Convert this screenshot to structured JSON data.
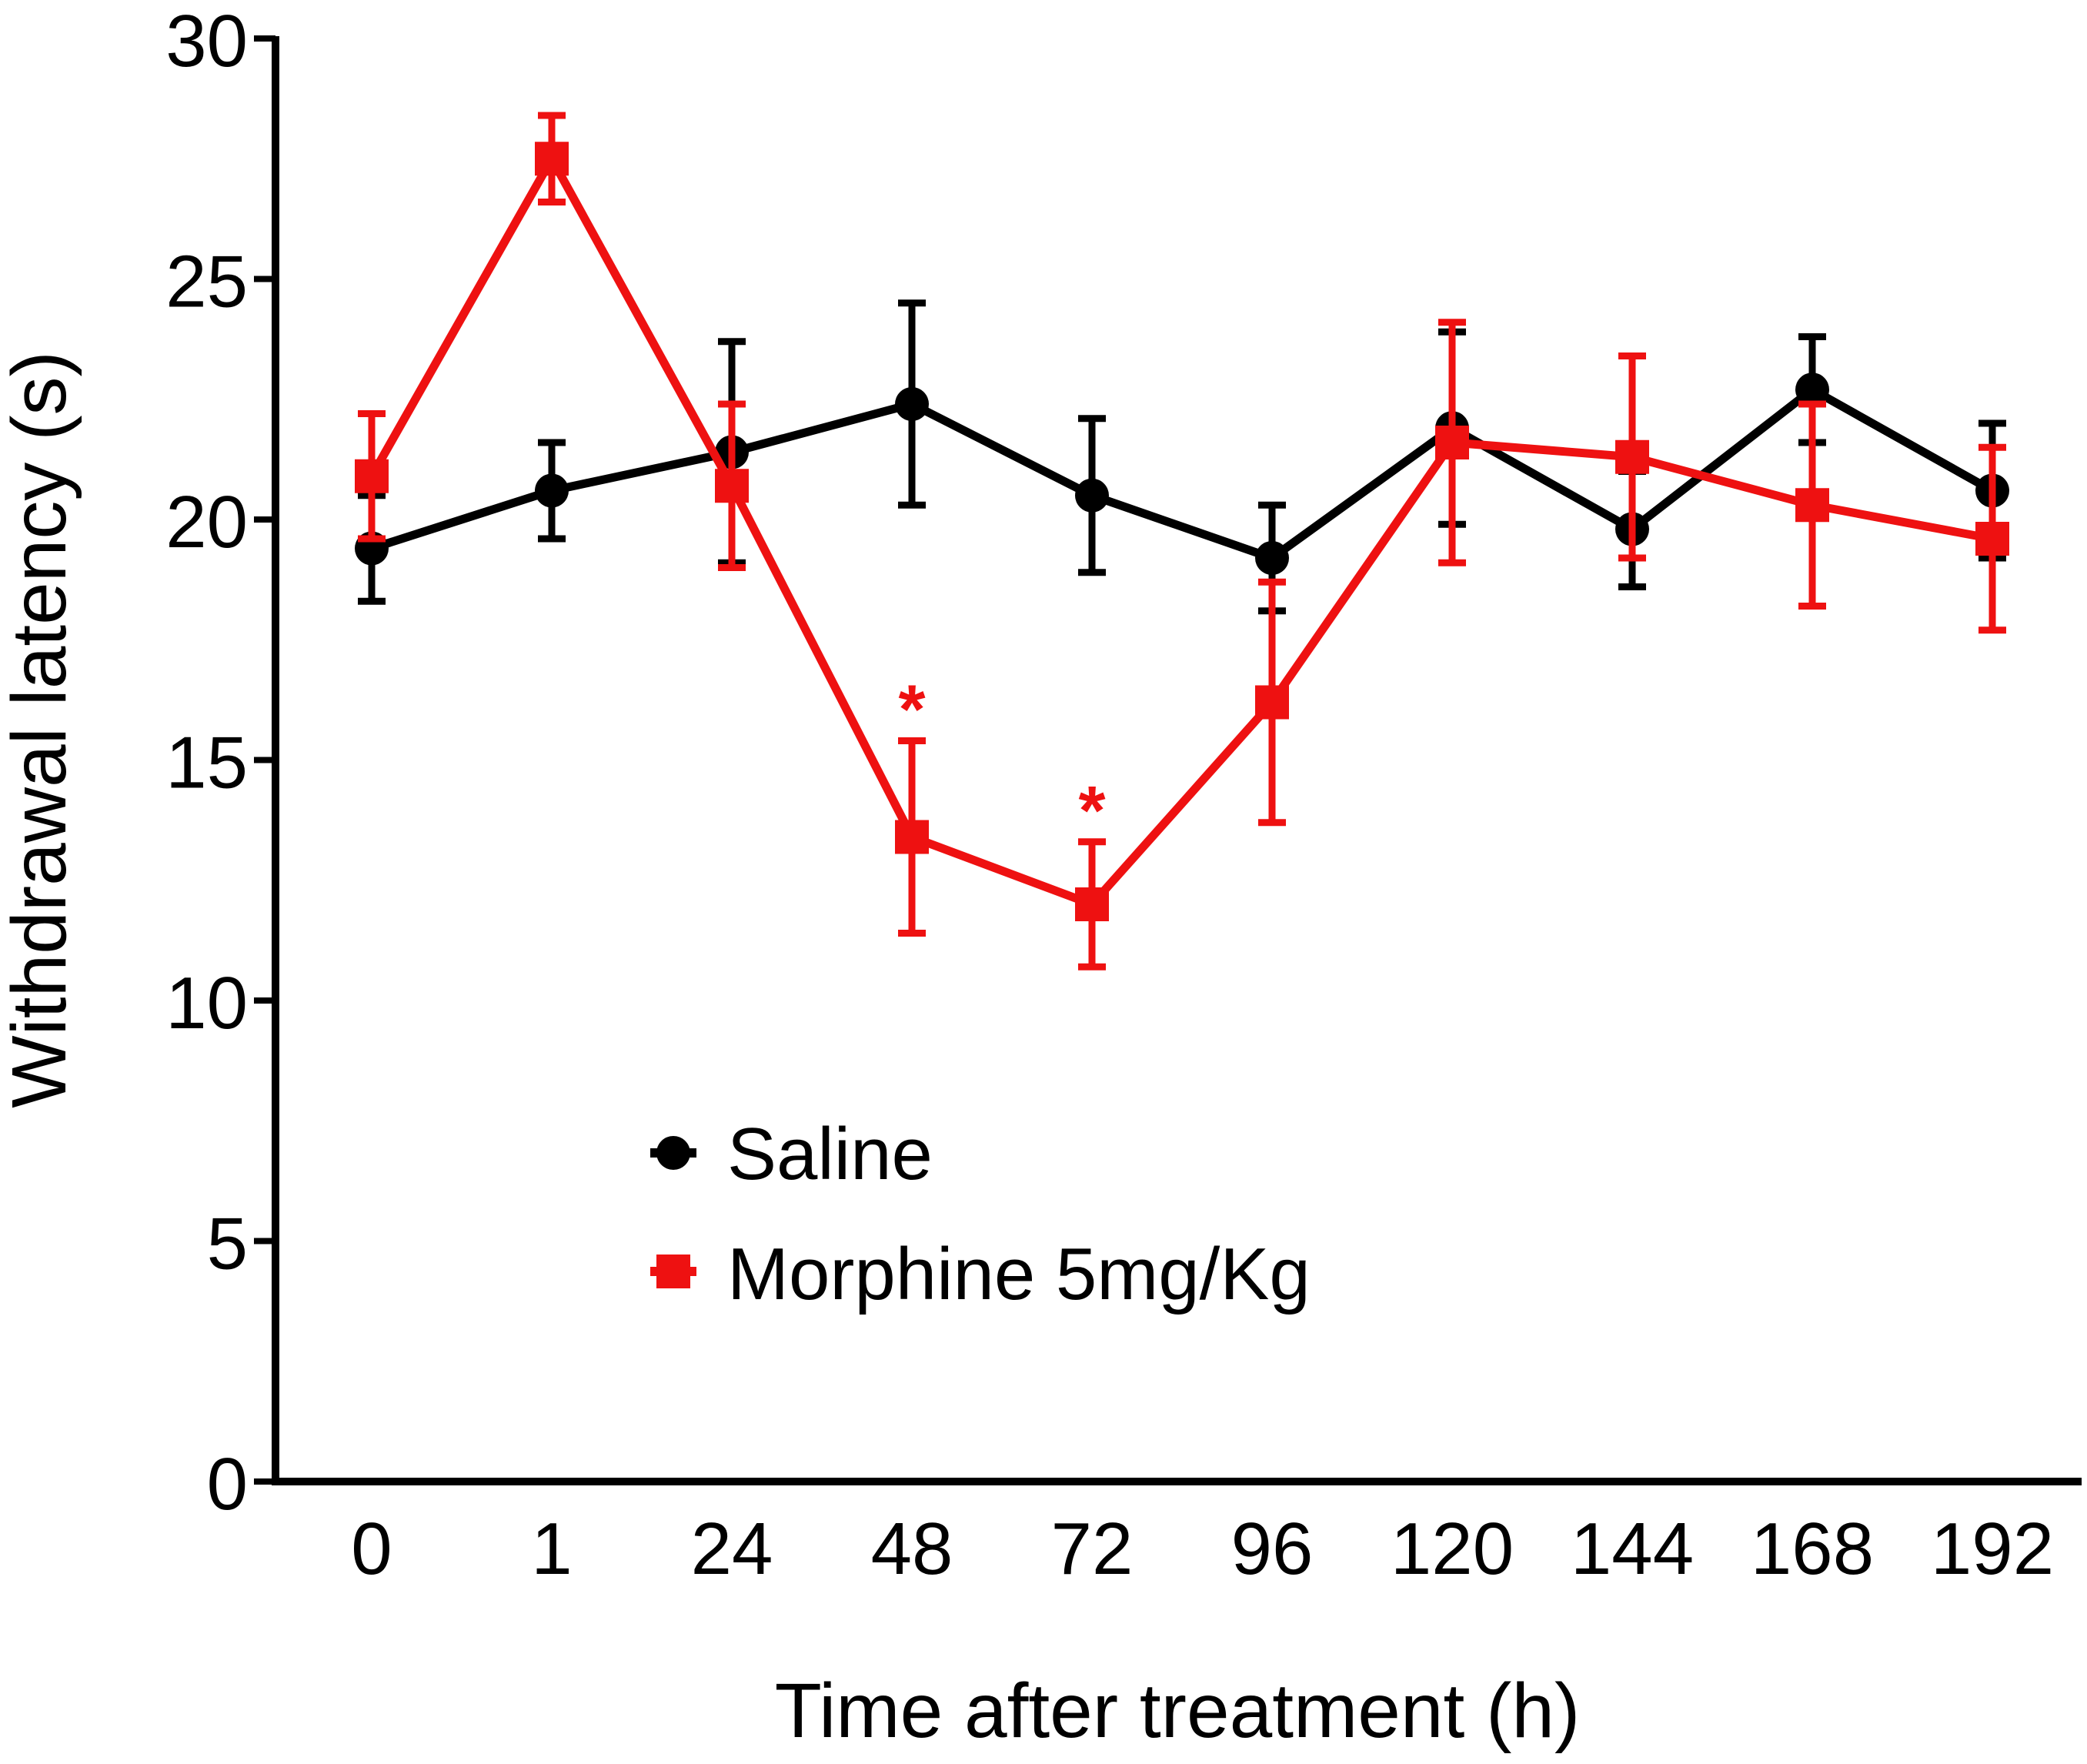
{
  "chart_data": {
    "type": "line",
    "title": "",
    "xlabel": "Time after treatment (h)",
    "ylabel": "Withdrawal  latency (s)",
    "categories": [
      "0",
      "1",
      "24",
      "48",
      "72",
      "96",
      "120",
      "144",
      "168",
      "192"
    ],
    "ylim": [
      0,
      30
    ],
    "yticks": [
      "0",
      "5",
      "10",
      "15",
      "20",
      "25",
      "30"
    ],
    "grid": false,
    "legend_position": "bottom-center inside plot",
    "series": [
      {
        "name": "Saline",
        "marker": "circle",
        "color": "#000000",
        "values": [
          19.4,
          20.6,
          21.4,
          22.4,
          20.5,
          19.2,
          21.9,
          19.8,
          22.7,
          20.6
        ],
        "errors": [
          1.1,
          1.0,
          2.3,
          2.1,
          1.6,
          1.1,
          2.0,
          1.2,
          1.1,
          1.4
        ]
      },
      {
        "name": "Morphine 5mg/Kg",
        "marker": "square",
        "color": "#ee1111",
        "values": [
          20.9,
          27.5,
          20.7,
          13.4,
          12.0,
          16.2,
          21.6,
          21.3,
          20.3,
          19.6
        ],
        "errors": [
          1.3,
          0.9,
          1.7,
          2.0,
          1.3,
          2.5,
          2.5,
          2.1,
          2.1,
          1.9
        ]
      }
    ],
    "annotations": [
      {
        "text": "*",
        "category": "48",
        "series": "Morphine 5mg/Kg"
      },
      {
        "text": "*",
        "category": "72",
        "series": "Morphine 5mg/Kg"
      }
    ]
  }
}
